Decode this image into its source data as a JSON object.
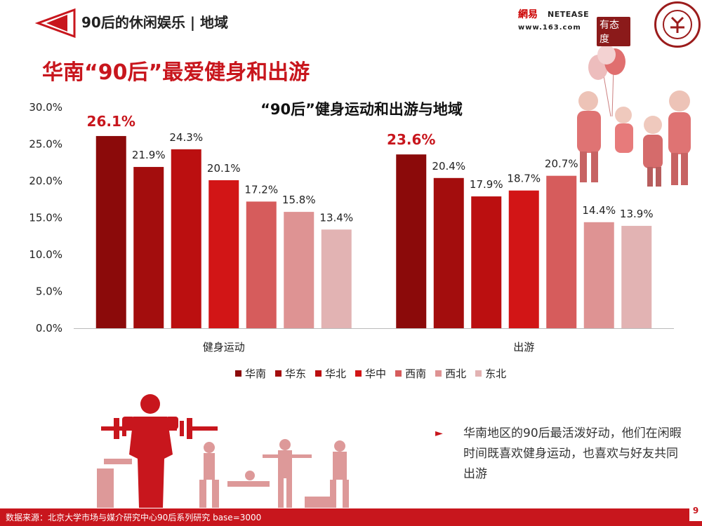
{
  "header": {
    "section_title": "90后的休闲娱乐 | 地域",
    "logo_cn": "網易",
    "logo_en": "NETEASE",
    "logo_url": "www.163.com",
    "logo_tag": "有态度"
  },
  "main_title": "华南“90后”最爱健身和出游",
  "chart_data": {
    "type": "bar",
    "title": "“90后”健身运动和出游与地域",
    "categories": [
      "健身运动",
      "出游"
    ],
    "series": [
      {
        "name": "华南",
        "values": [
          26.1,
          23.6
        ],
        "color": "#8b0a0a"
      },
      {
        "name": "华东",
        "values": [
          21.9,
          20.4
        ],
        "color": "#a30d0d"
      },
      {
        "name": "华北",
        "values": [
          24.3,
          17.9
        ],
        "color": "#bb0f10"
      },
      {
        "name": "华中",
        "values": [
          20.1,
          18.7
        ],
        "color": "#d21516"
      },
      {
        "name": "西南",
        "values": [
          17.2,
          20.7
        ],
        "color": "#d65c5c"
      },
      {
        "name": "西北",
        "values": [
          15.8,
          14.4
        ],
        "color": "#de9393"
      },
      {
        "name": "东北",
        "values": [
          13.4,
          13.9
        ],
        "color": "#e2b3b3"
      }
    ],
    "value_labels": [
      [
        "26.1%",
        "21.9%",
        "24.3%",
        "20.1%",
        "17.2%",
        "15.8%",
        "13.4%"
      ],
      [
        "23.6%",
        "20.4%",
        "17.9%",
        "18.7%",
        "20.7%",
        "14.4%",
        "13.9%"
      ]
    ],
    "ylim": [
      0,
      30
    ],
    "yticks": [
      "0.0%",
      "5.0%",
      "10.0%",
      "15.0%",
      "20.0%",
      "25.0%",
      "30.0%"
    ],
    "ytick_values": [
      0,
      5,
      10,
      15,
      20,
      25,
      30
    ],
    "highlight_color": "#c8161d",
    "xlabel": "",
    "ylabel": "",
    "legend": "bottom",
    "grid": false
  },
  "note": "华南地区的90后最活泼好动，他们在闲暇时间既喜欢健身运动，也喜欢与好友共同出游",
  "footer": "数据来源：北京大学市场与媒介研究中心90后系列研究 base=3000",
  "page_number": "9"
}
